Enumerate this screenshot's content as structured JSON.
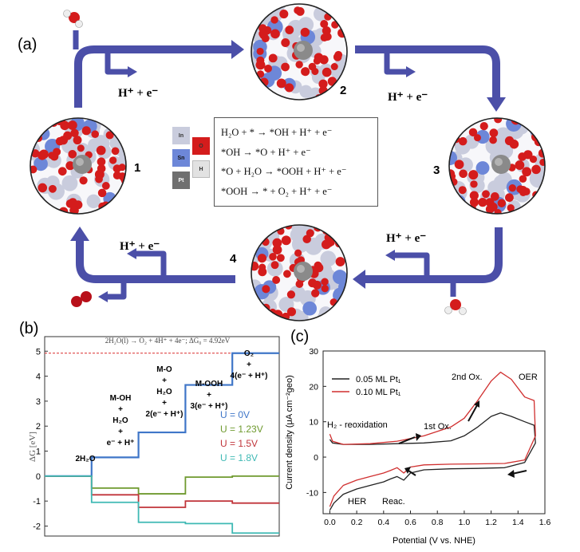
{
  "panel_a": {
    "label": "(a)",
    "proton_label": "H⁺ + e⁻",
    "intermediate_numbers": [
      "1",
      "2",
      "3",
      "4"
    ],
    "element_legend": [
      {
        "symbol": "In",
        "color": "#c9ccdd"
      },
      {
        "symbol": "Sn",
        "color": "#6d87d8"
      },
      {
        "symbol": "Pt",
        "color": "#6f6f6f"
      },
      {
        "symbol": "O",
        "color": "#d41c1c"
      },
      {
        "symbol": "H",
        "color": "#dcdcdc"
      }
    ],
    "reactions": [
      "H₂O + * → *OH + H⁺ + e⁻",
      "*OH → *O + H⁺ + e⁻",
      "*O + H₂O → *OOH + H⁺ + e⁻",
      "*OOH → * + O₂ + H⁺ + e⁻"
    ],
    "colors": {
      "arrow": "#4b4fa8",
      "oxygen": "#d41c1c",
      "indium": "#c9ccdd",
      "tin": "#6d87d8",
      "platinum": "#8a8a8a"
    }
  },
  "panel_b": {
    "label": "(b)",
    "header_equation": "2H₂O(l) → O₂ + 4H⁺ + 4e⁻;   ΔG₀ = 4.92eV",
    "y_axis_label": "ΔG [eV]",
    "steps": [
      {
        "species": "2H₂O",
        "process": ""
      },
      {
        "species": "M-OH",
        "process": "+ H₂O + e⁻ + H⁺"
      },
      {
        "species": "M-O",
        "process": "+ H₂O + 2(e⁻ + H⁺)"
      },
      {
        "species": "M-OOH",
        "process": "+ 3(e⁻ + H⁺)"
      },
      {
        "species": "O₂",
        "process": "+ 4(e⁻ + H⁺)"
      }
    ],
    "step_texts": {
      "h2o": "2H₂O",
      "moh": [
        "M-OH",
        "+",
        "H₂O",
        "+",
        "e⁻ + H⁺"
      ],
      "mo": [
        "M-O",
        "+",
        "H₂O",
        "+",
        "2(e⁻ + H⁺)"
      ],
      "mooh": [
        "M-OOH",
        "+",
        "3(e⁻ + H⁺)"
      ],
      "o2": [
        "O₂",
        "+",
        "4(e⁻ + H⁺)"
      ]
    }
  },
  "panel_c": {
    "label": "(c)",
    "annotations": {
      "oer": "OER",
      "ox2": "2nd Ox.",
      "ox1": "1st Ox.",
      "h2ox": "H₂ - reoxidation",
      "her": "HER",
      "reac": "Reac."
    }
  },
  "chart_data": [
    {
      "type": "line",
      "title": "",
      "xlabel": "",
      "ylabel": "ΔG [eV]",
      "x": [
        0,
        1,
        2,
        3,
        4
      ],
      "ylim": [
        -2.4,
        5.2
      ],
      "yticks": [
        -2,
        -1,
        0,
        1,
        2,
        3,
        4,
        5
      ],
      "reference_line": {
        "value": 4.92,
        "style": "dashed",
        "color": "#d92b2b"
      },
      "series": [
        {
          "name": "U = 0V",
          "color": "#3f76c8",
          "values": [
            0,
            0.75,
            1.75,
            3.65,
            4.92
          ]
        },
        {
          "name": "U = 1.23V",
          "color": "#6f9a2f",
          "values": [
            0,
            -0.48,
            -0.71,
            -0.04,
            0
          ]
        },
        {
          "name": "U = 1.5V",
          "color": "#c0343a",
          "values": [
            0,
            -0.75,
            -1.25,
            -1.0,
            -1.08
          ]
        },
        {
          "name": "U = 1.8V",
          "color": "#3fb9b4",
          "values": [
            0,
            -1.05,
            -1.85,
            -1.9,
            -2.28
          ]
        }
      ]
    },
    {
      "type": "line",
      "title": "",
      "xlabel": "Potential (V vs. NHE)",
      "ylabel": "Current density (μA cm⁻²geo)",
      "xlim": [
        -0.05,
        1.6
      ],
      "ylim": [
        -16,
        30
      ],
      "xticks": [
        0.0,
        0.2,
        0.4,
        0.6,
        0.8,
        1.0,
        1.2,
        1.4,
        1.6
      ],
      "yticks": [
        -10,
        0,
        10,
        20,
        30
      ],
      "legend_position": "top-left",
      "series": [
        {
          "name": "0.05 ML Pt₁",
          "color": "#222222",
          "anodic": {
            "x": [
              0.0,
              0.02,
              0.1,
              0.3,
              0.5,
              0.7,
              0.9,
              1.0,
              1.1,
              1.2,
              1.27,
              1.35,
              1.45,
              1.52
            ],
            "y": [
              5.0,
              4.0,
              3.6,
              3.6,
              3.8,
              4.0,
              4.6,
              6.0,
              8.5,
              11.5,
              12.5,
              11.5,
              10.0,
              9.0
            ]
          },
          "cathodic": {
            "x": [
              1.53,
              1.45,
              1.3,
              1.1,
              0.9,
              0.7,
              0.6,
              0.55,
              0.5,
              0.45,
              0.4,
              0.3,
              0.2,
              0.1,
              0.03,
              0.0
            ],
            "y": [
              4.0,
              -1.5,
              -3.0,
              -3.2,
              -3.3,
              -3.6,
              -4.5,
              -6.5,
              -5.5,
              -6.2,
              -7.0,
              -8.0,
              -9.0,
              -10.5,
              -13.0,
              -15.0
            ]
          }
        },
        {
          "name": "0.10 ML Pt₁",
          "color": "#d02f2f",
          "anodic": {
            "x": [
              0.0,
              0.02,
              0.1,
              0.3,
              0.5,
              0.7,
              0.9,
              1.0,
              1.1,
              1.2,
              1.27,
              1.35,
              1.45,
              1.52
            ],
            "y": [
              6.5,
              4.5,
              3.6,
              3.8,
              4.5,
              6.0,
              8.5,
              11.0,
              16.0,
              21.5,
              24.0,
              22.0,
              17.0,
              16.0
            ]
          },
          "cathodic": {
            "x": [
              1.53,
              1.45,
              1.3,
              1.1,
              0.9,
              0.7,
              0.6,
              0.55,
              0.5,
              0.45,
              0.4,
              0.3,
              0.2,
              0.1,
              0.03,
              0.0
            ],
            "y": [
              6.0,
              -0.8,
              -1.8,
              -1.9,
              -2.0,
              -2.2,
              -2.8,
              -4.5,
              -3.0,
              -3.8,
              -4.5,
              -5.5,
              -6.5,
              -8.0,
              -11.0,
              -14.0
            ]
          }
        }
      ]
    }
  ]
}
